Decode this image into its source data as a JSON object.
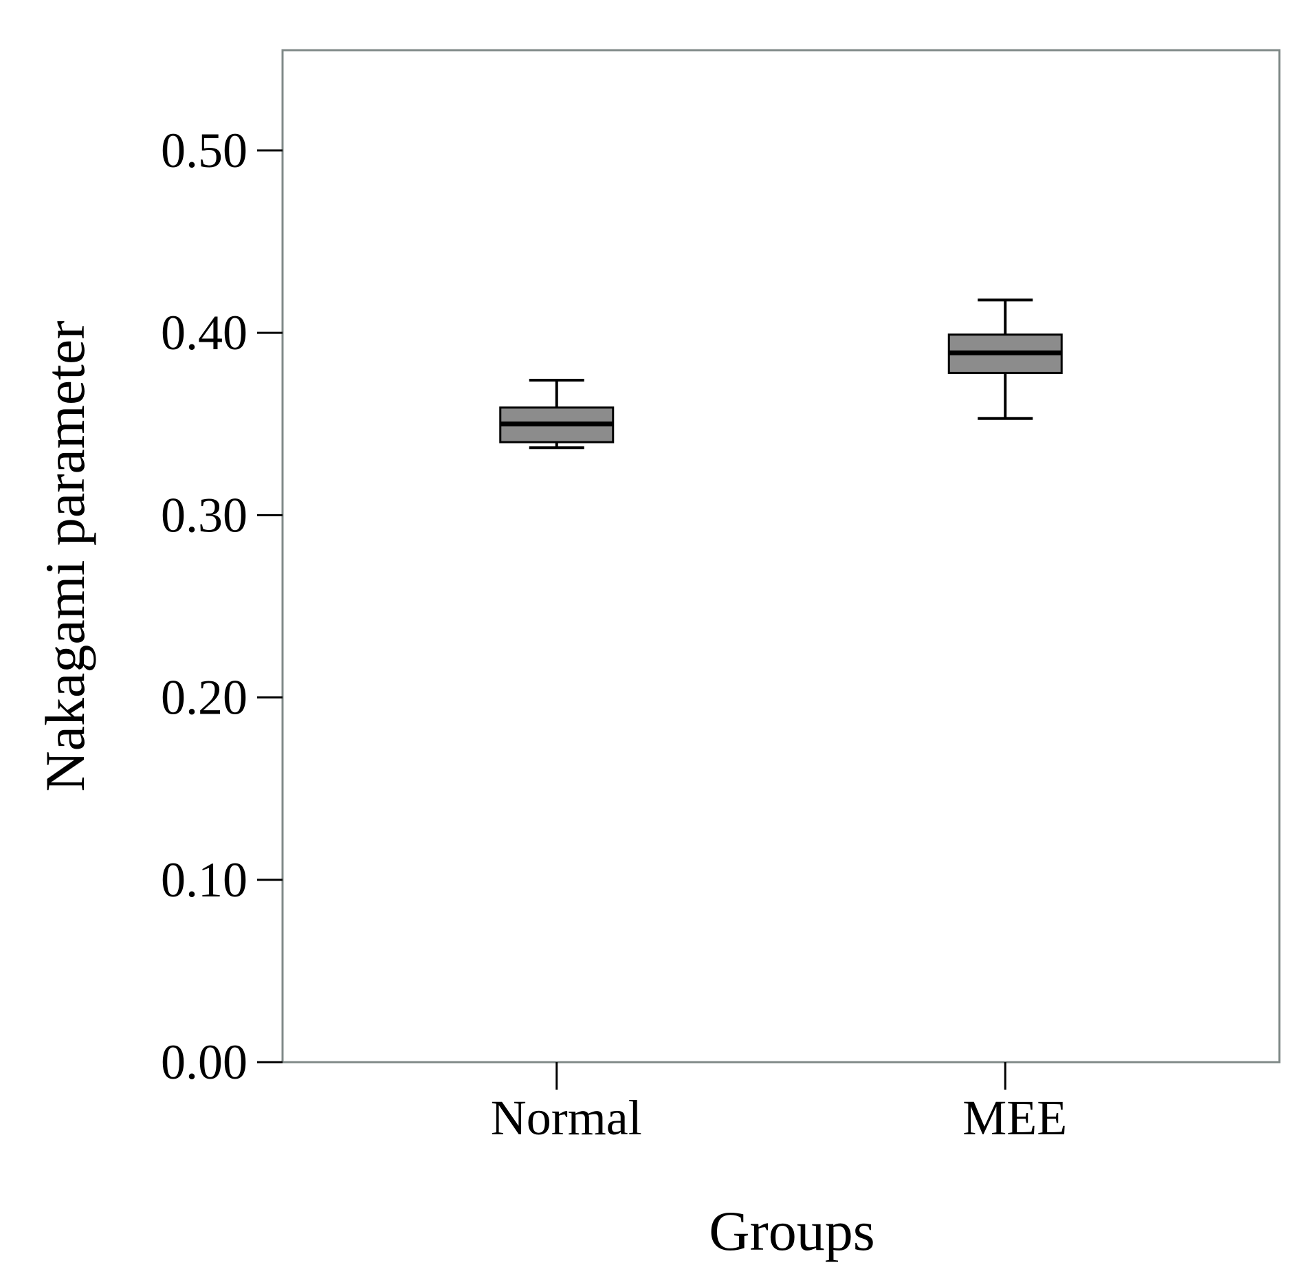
{
  "chart_data": {
    "type": "boxplot",
    "title": "",
    "xlabel": "Groups",
    "ylabel": "Nakagami parameter",
    "ylim": [
      0.0,
      0.555
    ],
    "yticks": [
      0.0,
      0.1,
      0.2,
      0.3,
      0.4,
      0.5
    ],
    "ytick_labels": [
      "0.00",
      "0.10",
      "0.20",
      "0.30",
      "0.40",
      "0.50"
    ],
    "categories": [
      "Normal",
      "MEE"
    ],
    "boxes": [
      {
        "category": "Normal",
        "whisker_low": 0.337,
        "q1": 0.34,
        "median": 0.35,
        "q3": 0.359,
        "whisker_high": 0.374
      },
      {
        "category": "MEE",
        "whisker_low": 0.353,
        "q1": 0.378,
        "median": 0.389,
        "q3": 0.399,
        "whisker_high": 0.418
      }
    ],
    "grid": false,
    "legend": "none",
    "colors": {
      "box_fill": "#8c8c8c",
      "frame": "#808a88",
      "median": "#000000",
      "whisker": "#000000"
    }
  }
}
